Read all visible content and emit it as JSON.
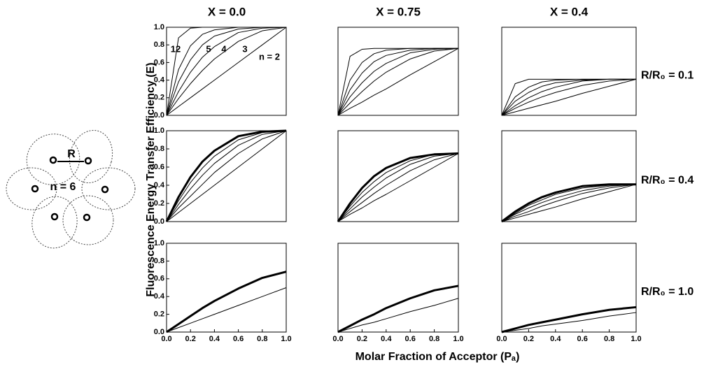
{
  "figure": {
    "y_label": "Fluorescence Energy Transfer Efficiency (E)",
    "x_label": "Molar Fraction of Acceptor (Pₐ)",
    "column_titles": [
      "X = 0.0",
      "X = 0.75",
      "X = 0.4"
    ],
    "row_labels": [
      "R/R₀ = 0.1",
      "R/R₀ = 0.4",
      "R/R₀ = 1.0"
    ]
  },
  "diagram": {
    "r_label": "R",
    "n_label": "n = 6"
  },
  "chart_data": [
    {
      "type": "line",
      "x": [
        0,
        0.1,
        0.2,
        0.3,
        0.4,
        0.6,
        0.8,
        1.0
      ],
      "xlim": [
        0,
        1
      ],
      "ylim": [
        0,
        1
      ],
      "yticks": [
        {
          "value": 0,
          "label": "0.0"
        },
        {
          "value": 0.2,
          "label": "0.2"
        },
        {
          "value": 0.4,
          "label": "0.4"
        },
        {
          "value": 0.6,
          "label": "0.6"
        },
        {
          "value": 0.8,
          "label": "0.8"
        },
        {
          "value": 1,
          "label": "1.0"
        }
      ],
      "labels": [
        "12",
        "5",
        "4",
        "3",
        "n = 2"
      ],
      "series": [
        {
          "color": "#000000",
          "width": 1,
          "values": [
            0,
            0.1,
            0.2,
            0.3,
            0.4,
            0.6,
            0.8,
            1
          ]
        },
        {
          "color": "#000000",
          "width": 1,
          "values": [
            0,
            0.19,
            0.36,
            0.51,
            0.64,
            0.84,
            0.96,
            1
          ]
        },
        {
          "color": "#000000",
          "width": 1,
          "values": [
            0,
            0.27,
            0.49,
            0.66,
            0.78,
            0.94,
            0.99,
            1
          ]
        },
        {
          "color": "#000000",
          "width": 1,
          "values": [
            0,
            0.38,
            0.63,
            0.8,
            0.9,
            0.98,
            1,
            1
          ]
        },
        {
          "color": "#000000",
          "width": 1,
          "values": [
            0,
            0.52,
            0.79,
            0.92,
            0.97,
            1,
            1,
            1
          ]
        },
        {
          "color": "#000000",
          "width": 1,
          "values": [
            0,
            0.88,
            0.99,
            1,
            1,
            1,
            1,
            1
          ]
        }
      ]
    },
    {
      "type": "line",
      "x": [
        0,
        0.1,
        0.2,
        0.3,
        0.4,
        0.6,
        0.8,
        1.0
      ],
      "xlim": [
        0,
        1
      ],
      "ylim": [
        0,
        1
      ],
      "series": [
        {
          "color": "#000000",
          "width": 1,
          "values": [
            0,
            0.08,
            0.15,
            0.23,
            0.3,
            0.46,
            0.61,
            0.76
          ]
        },
        {
          "color": "#000000",
          "width": 1,
          "values": [
            0,
            0.14,
            0.27,
            0.39,
            0.49,
            0.64,
            0.73,
            0.76
          ]
        },
        {
          "color": "#000000",
          "width": 1,
          "values": [
            0,
            0.21,
            0.37,
            0.5,
            0.59,
            0.71,
            0.75,
            0.76
          ]
        },
        {
          "color": "#000000",
          "width": 1,
          "values": [
            0,
            0.29,
            0.48,
            0.61,
            0.68,
            0.74,
            0.76,
            0.76
          ]
        },
        {
          "color": "#000000",
          "width": 1,
          "values": [
            0,
            0.4,
            0.6,
            0.7,
            0.74,
            0.76,
            0.76,
            0.76
          ]
        },
        {
          "color": "#000000",
          "width": 1,
          "values": [
            0,
            0.67,
            0.75,
            0.76,
            0.76,
            0.76,
            0.76,
            0.76
          ]
        }
      ]
    },
    {
      "type": "line",
      "x": [
        0,
        0.1,
        0.2,
        0.3,
        0.4,
        0.6,
        0.8,
        1.0
      ],
      "xlim": [
        0,
        1
      ],
      "ylim": [
        0,
        1
      ],
      "series": [
        {
          "color": "#000000",
          "width": 1,
          "values": [
            0,
            0.04,
            0.08,
            0.12,
            0.16,
            0.25,
            0.33,
            0.41
          ]
        },
        {
          "color": "#000000",
          "width": 1,
          "values": [
            0,
            0.08,
            0.15,
            0.21,
            0.26,
            0.34,
            0.39,
            0.41
          ]
        },
        {
          "color": "#000000",
          "width": 1,
          "values": [
            0,
            0.11,
            0.2,
            0.27,
            0.32,
            0.39,
            0.41,
            0.41
          ]
        },
        {
          "color": "#000000",
          "width": 1,
          "values": [
            0,
            0.16,
            0.26,
            0.33,
            0.37,
            0.4,
            0.41,
            0.41
          ]
        },
        {
          "color": "#000000",
          "width": 1,
          "values": [
            0,
            0.21,
            0.32,
            0.38,
            0.4,
            0.41,
            0.41,
            0.41
          ]
        },
        {
          "color": "#000000",
          "width": 1,
          "values": [
            0,
            0.36,
            0.41,
            0.41,
            0.41,
            0.41,
            0.41,
            0.41
          ]
        }
      ]
    },
    {
      "type": "line",
      "x": [
        0,
        0.1,
        0.2,
        0.3,
        0.4,
        0.6,
        0.8,
        1.0
      ],
      "xlim": [
        0,
        1
      ],
      "ylim": [
        0,
        1
      ],
      "yticks": [
        {
          "value": 0,
          "label": "0.0"
        },
        {
          "value": 0.2,
          "label": "0.2"
        },
        {
          "value": 0.4,
          "label": "0.4"
        },
        {
          "value": 0.6,
          "label": "0.6"
        },
        {
          "value": 0.8,
          "label": "0.8"
        },
        {
          "value": 1,
          "label": "1.0"
        }
      ],
      "series": [
        {
          "color": "#000000",
          "width": 1,
          "values": [
            0,
            0.1,
            0.2,
            0.3,
            0.4,
            0.6,
            0.8,
            1
          ]
        },
        {
          "color": "#000000",
          "width": 1,
          "values": [
            0,
            0.15,
            0.28,
            0.41,
            0.54,
            0.75,
            0.91,
            1
          ]
        },
        {
          "color": "#000000",
          "width": 1,
          "values": [
            0,
            0.19,
            0.36,
            0.51,
            0.64,
            0.84,
            0.96,
            1
          ]
        },
        {
          "color": "#000000",
          "width": 1,
          "values": [
            0,
            0.23,
            0.43,
            0.59,
            0.72,
            0.9,
            0.98,
            1
          ]
        },
        {
          "color": "#000000",
          "width": 3,
          "values": [
            0,
            0.27,
            0.49,
            0.66,
            0.78,
            0.94,
            0.99,
            1
          ]
        }
      ]
    },
    {
      "type": "line",
      "x": [
        0,
        0.1,
        0.2,
        0.3,
        0.4,
        0.6,
        0.8,
        1.0
      ],
      "xlim": [
        0,
        1
      ],
      "ylim": [
        0,
        1
      ],
      "series": [
        {
          "color": "#000000",
          "width": 1,
          "values": [
            0,
            0.08,
            0.15,
            0.23,
            0.3,
            0.45,
            0.6,
            0.75
          ]
        },
        {
          "color": "#000000",
          "width": 1,
          "values": [
            0,
            0.11,
            0.21,
            0.31,
            0.4,
            0.56,
            0.68,
            0.75
          ]
        },
        {
          "color": "#000000",
          "width": 1,
          "values": [
            0,
            0.14,
            0.27,
            0.38,
            0.48,
            0.63,
            0.72,
            0.75
          ]
        },
        {
          "color": "#000000",
          "width": 1,
          "values": [
            0,
            0.17,
            0.32,
            0.44,
            0.54,
            0.67,
            0.74,
            0.75
          ]
        },
        {
          "color": "#000000",
          "width": 3,
          "values": [
            0,
            0.2,
            0.37,
            0.5,
            0.59,
            0.7,
            0.74,
            0.75
          ]
        }
      ]
    },
    {
      "type": "line",
      "x": [
        0,
        0.1,
        0.2,
        0.3,
        0.4,
        0.6,
        0.8,
        1.0
      ],
      "xlim": [
        0,
        1
      ],
      "ylim": [
        0,
        1
      ],
      "series": [
        {
          "color": "#000000",
          "width": 1,
          "values": [
            0,
            0.04,
            0.08,
            0.12,
            0.16,
            0.25,
            0.33,
            0.41
          ]
        },
        {
          "color": "#000000",
          "width": 1,
          "values": [
            0,
            0.06,
            0.11,
            0.17,
            0.22,
            0.31,
            0.37,
            0.41
          ]
        },
        {
          "color": "#000000",
          "width": 1,
          "values": [
            0,
            0.08,
            0.15,
            0.21,
            0.26,
            0.34,
            0.39,
            0.41
          ]
        },
        {
          "color": "#000000",
          "width": 1,
          "values": [
            0,
            0.09,
            0.18,
            0.24,
            0.3,
            0.37,
            0.4,
            0.41
          ]
        },
        {
          "color": "#000000",
          "width": 3,
          "values": [
            0,
            0.11,
            0.2,
            0.27,
            0.32,
            0.39,
            0.41,
            0.41
          ]
        }
      ]
    },
    {
      "type": "line",
      "x": [
        0,
        0.1,
        0.2,
        0.3,
        0.4,
        0.6,
        0.8,
        1.0
      ],
      "xlim": [
        0,
        1
      ],
      "ylim": [
        0,
        1
      ],
      "yticks": [
        {
          "value": 0,
          "label": "0.0"
        },
        {
          "value": 0.2,
          "label": "0.2"
        },
        {
          "value": 0.4,
          "label": "0.4"
        },
        {
          "value": 0.6,
          "label": "0.6"
        },
        {
          "value": 0.8,
          "label": "0.8"
        },
        {
          "value": 1,
          "label": "1.0"
        }
      ],
      "xticks": [
        {
          "value": 0,
          "label": "0.0"
        },
        {
          "value": 0.2,
          "label": "0.2"
        },
        {
          "value": 0.4,
          "label": "0.4"
        },
        {
          "value": 0.6,
          "label": "0.6"
        },
        {
          "value": 0.8,
          "label": "0.8"
        },
        {
          "value": 1,
          "label": "1.0"
        }
      ],
      "series": [
        {
          "color": "#000000",
          "width": 1,
          "values": [
            0,
            0.05,
            0.1,
            0.15,
            0.2,
            0.3,
            0.4,
            0.5
          ]
        },
        {
          "color": "#000000",
          "width": 3,
          "values": [
            0,
            0.09,
            0.18,
            0.27,
            0.35,
            0.49,
            0.61,
            0.68
          ]
        }
      ]
    },
    {
      "type": "line",
      "x": [
        0,
        0.1,
        0.2,
        0.3,
        0.4,
        0.6,
        0.8,
        1.0
      ],
      "xlim": [
        0,
        1
      ],
      "ylim": [
        0,
        1
      ],
      "xticks": [
        {
          "value": 0,
          "label": "0.0"
        },
        {
          "value": 0.2,
          "label": "0.2"
        },
        {
          "value": 0.4,
          "label": "0.4"
        },
        {
          "value": 0.6,
          "label": "0.6"
        },
        {
          "value": 0.8,
          "label": "0.8"
        },
        {
          "value": 1,
          "label": "1.0"
        }
      ],
      "series": [
        {
          "color": "#000000",
          "width": 1,
          "values": [
            0,
            0.04,
            0.08,
            0.11,
            0.15,
            0.23,
            0.3,
            0.38
          ]
        },
        {
          "color": "#000000",
          "width": 3,
          "values": [
            0,
            0.07,
            0.14,
            0.2,
            0.27,
            0.38,
            0.47,
            0.52
          ]
        }
      ]
    },
    {
      "type": "line",
      "x": [
        0,
        0.1,
        0.2,
        0.3,
        0.4,
        0.6,
        0.8,
        1.0
      ],
      "xlim": [
        0,
        1
      ],
      "ylim": [
        0,
        1
      ],
      "xticks": [
        {
          "value": 0,
          "label": "0.0"
        },
        {
          "value": 0.2,
          "label": "0.2"
        },
        {
          "value": 0.4,
          "label": "0.4"
        },
        {
          "value": 0.6,
          "label": "0.6"
        },
        {
          "value": 0.8,
          "label": "0.8"
        },
        {
          "value": 1,
          "label": "1.0"
        }
      ],
      "series": [
        {
          "color": "#000000",
          "width": 1,
          "values": [
            0,
            0.02,
            0.04,
            0.07,
            0.09,
            0.13,
            0.18,
            0.22
          ]
        },
        {
          "color": "#000000",
          "width": 3,
          "values": [
            0,
            0.04,
            0.08,
            0.11,
            0.14,
            0.2,
            0.25,
            0.28
          ]
        }
      ]
    }
  ]
}
